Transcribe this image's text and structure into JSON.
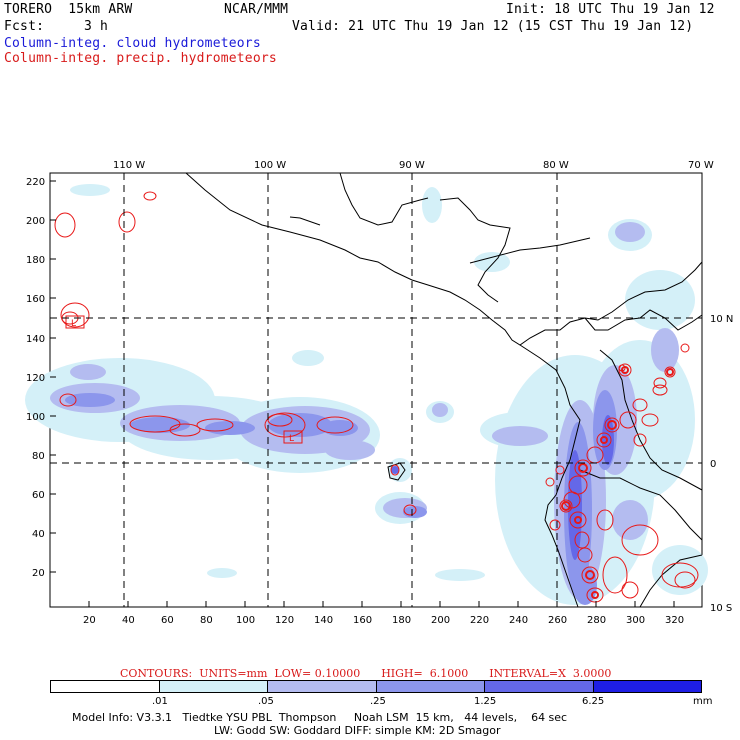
{
  "header": {
    "model": "TORERO  15km ARW",
    "org": "NCAR/MMM",
    "init": "Init: 18 UTC Thu 19 Jan 12",
    "fcst_label": "Fcst:",
    "fcst_value": "3 h",
    "valid": "Valid: 21 UTC Thu 19 Jan 12 (15 CST Thu 19 Jan 12)",
    "field1": "Column-integ. cloud hydrometeors",
    "field2": "Column-integ. precip. hydrometeors"
  },
  "map": {
    "top_labels": [
      "110 W",
      "100 W",
      "90 W",
      "80 W",
      "70 W"
    ],
    "right_labels": [
      "10 N",
      "0",
      "10 S"
    ],
    "y_ticks": [
      "220",
      "200",
      "180",
      "160",
      "140",
      "120",
      "100",
      "80",
      "60",
      "40",
      "20"
    ],
    "x_ticks": [
      "20",
      "40",
      "60",
      "80",
      "100",
      "120",
      "140",
      "160",
      "180",
      "200",
      "220",
      "240",
      "260",
      "280",
      "300",
      "320"
    ],
    "point_label": "L"
  },
  "contour_info": {
    "text": "CONTOURS:  UNITS=mm  LOW= 0.10000      HIGH=  6.1000      INTERVAL=X  3.0000"
  },
  "colorbar": {
    "labels": [
      ".01",
      ".05",
      ".25",
      "1.25",
      "6.25",
      "mm"
    ],
    "colors": [
      "#ffffff",
      "#d4f0f8",
      "#b4bcf0",
      "#8c96ec",
      "#6468e8",
      "#1e1ee4"
    ]
  },
  "footer": {
    "line1": "Model Info: V3.3.1   Tiedtke YSU PBL  Thompson     Noah LSM  15 km,   44 levels,    64 sec",
    "line2": "LW: Godd SW: Goddard DIFF: simple KM: 2D Smagor"
  }
}
